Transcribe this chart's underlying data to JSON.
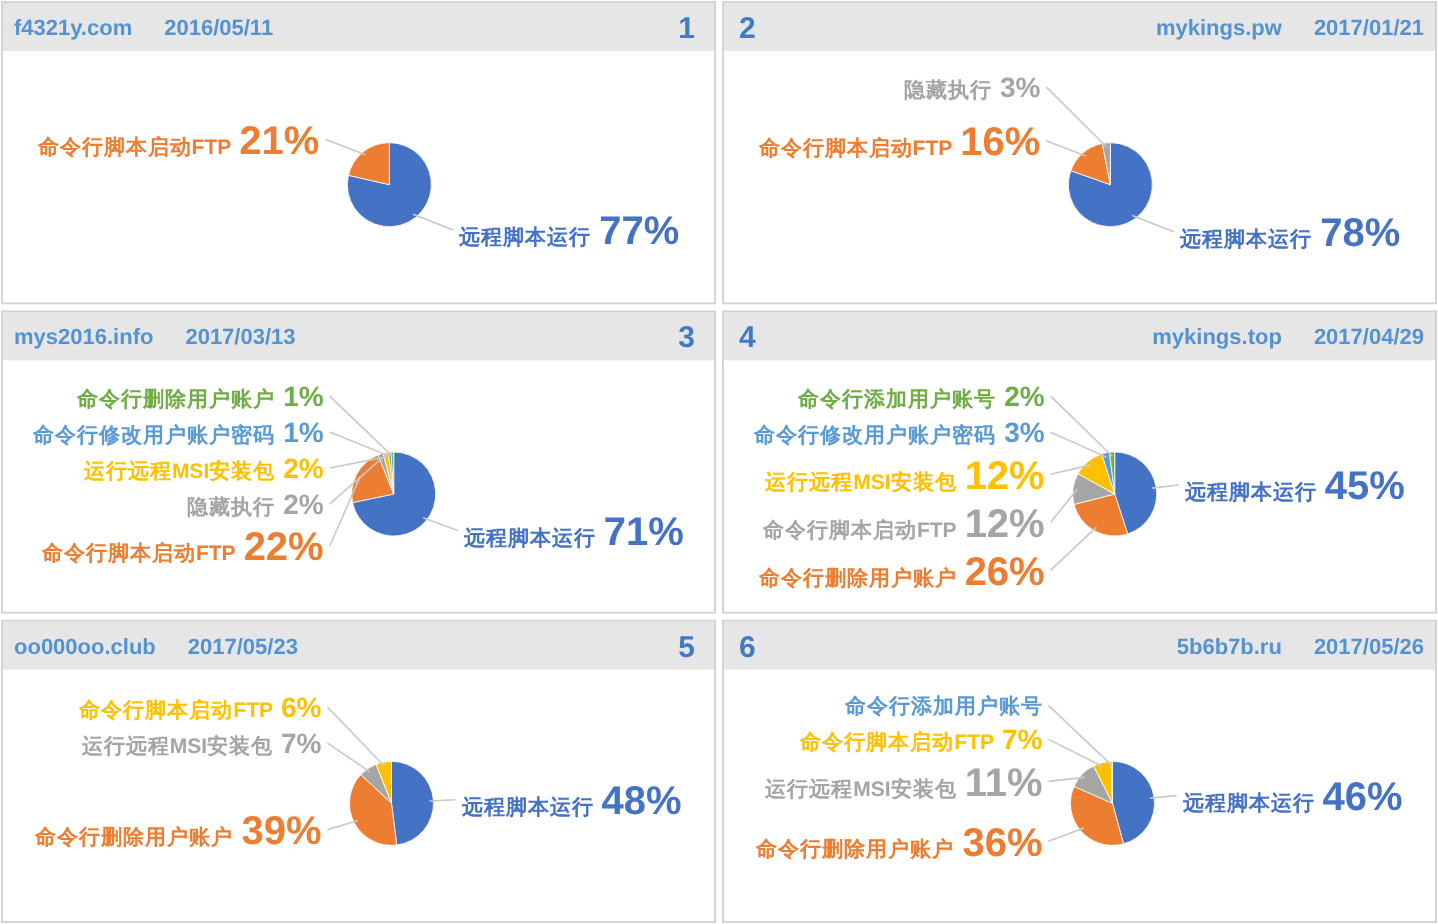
{
  "chart_data": [
    {
      "type": "pie",
      "title": "f4321y.com",
      "subtitle": "2016/05/11",
      "annotations": [
        "1"
      ],
      "categories": [
        "远程脚本运行",
        "命令行脚本启动FTP"
      ],
      "values": [
        77,
        21
      ],
      "colors": [
        "#4472c4",
        "#ed7d31"
      ],
      "value_labels": [
        "77%",
        "21%"
      ]
    },
    {
      "type": "pie",
      "title": "mykings.pw",
      "subtitle": "2017/01/21",
      "annotations": [
        "2"
      ],
      "categories": [
        "远程脚本运行",
        "命令行脚本启动FTP",
        "隐藏执行"
      ],
      "values": [
        78,
        16,
        3
      ],
      "colors": [
        "#4472c4",
        "#ed7d31",
        "#a5a5a5"
      ],
      "value_labels": [
        "78%",
        "16%",
        "3%"
      ]
    },
    {
      "type": "pie",
      "title": "mys2016.info",
      "subtitle": "2017/03/13",
      "annotations": [
        "3"
      ],
      "categories": [
        "远程脚本运行",
        "命令行脚本启动FTP",
        "隐藏执行",
        "运行远程MSI安装包",
        "命令行修改用户账户密码",
        "命令行删除用户账户"
      ],
      "values": [
        71,
        22,
        2,
        2,
        1,
        1
      ],
      "colors": [
        "#4472c4",
        "#ed7d31",
        "#a5a5a5",
        "#ffc000",
        "#5b9bd5",
        "#70ad47"
      ],
      "value_labels": [
        "71%",
        "22%",
        "2%",
        "2%",
        "1%",
        "1%"
      ]
    },
    {
      "type": "pie",
      "title": "mykings.top",
      "subtitle": "2017/04/29",
      "annotations": [
        "4"
      ],
      "categories": [
        "远程脚本运行",
        "命令行删除用户账户",
        "命令行脚本启动FTP",
        "运行远程MSI安装包",
        "命令行修改用户账户密码",
        "命令行添加用户账号"
      ],
      "values": [
        45,
        26,
        12,
        12,
        3,
        2
      ],
      "colors": [
        "#4472c4",
        "#ed7d31",
        "#a5a5a5",
        "#ffc000",
        "#5b9bd5",
        "#70ad47"
      ],
      "value_labels": [
        "45%",
        "26%",
        "12%",
        "12%",
        "3%",
        "2%"
      ]
    },
    {
      "type": "pie",
      "title": "oo000oo.club",
      "subtitle": "2017/05/23",
      "annotations": [
        "5"
      ],
      "categories": [
        "远程脚本运行",
        "命令行删除用户账户",
        "运行远程MSI安装包",
        "命令行脚本启动FTP"
      ],
      "values": [
        48,
        39,
        7,
        6
      ],
      "colors": [
        "#4472c4",
        "#ed7d31",
        "#a5a5a5",
        "#ffc000"
      ],
      "value_labels": [
        "48%",
        "39%",
        "7%",
        "6%"
      ]
    },
    {
      "type": "pie",
      "title": "5b6b7b.ru",
      "subtitle": "2017/05/26",
      "annotations": [
        "6"
      ],
      "categories": [
        "远程脚本运行",
        "命令行删除用户账户",
        "运行远程MSI安装包",
        "命令行脚本启动FTP",
        "命令行添加用户账号"
      ],
      "values": [
        46,
        36,
        11,
        7,
        0.5
      ],
      "colors": [
        "#4472c4",
        "#ed7d31",
        "#a5a5a5",
        "#ffc000",
        "#5b9bd5"
      ],
      "value_labels": [
        "46%",
        "36%",
        "11%",
        "7%",
        null
      ]
    }
  ]
}
